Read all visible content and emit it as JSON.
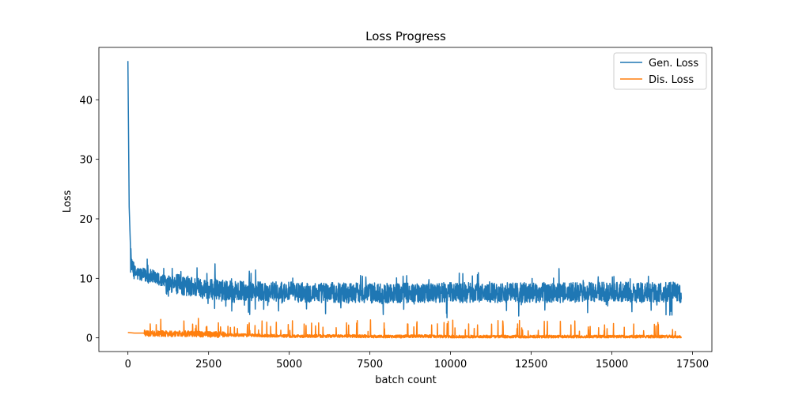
{
  "chart_data": {
    "type": "line",
    "title": "Loss Progress",
    "xlabel": "batch count",
    "ylabel": "Loss",
    "xlim": [
      -900,
      18100
    ],
    "ylim": [
      -2.3,
      48.8
    ],
    "xticks": [
      0,
      2500,
      5000,
      7500,
      10000,
      12500,
      15000,
      17500
    ],
    "yticks": [
      0,
      10,
      20,
      30,
      40
    ],
    "xtick_labels": [
      "0",
      "2500",
      "5000",
      "7500",
      "10000",
      "12500",
      "15000",
      "17500"
    ],
    "ytick_labels": [
      "0",
      "10",
      "20",
      "30",
      "40"
    ],
    "grid": false,
    "legend_position": "top-right",
    "series": [
      {
        "name": "Gen. Loss",
        "color": "#1f77b4",
        "x": [
          0,
          40,
          80,
          120,
          200,
          300,
          500,
          800,
          1000,
          1500,
          2000,
          2500,
          3000,
          4000,
          5000,
          6000,
          7000,
          8000,
          9000,
          10000,
          11000,
          12000,
          13000,
          14000,
          15000,
          16000,
          17000,
          17150
        ],
        "values": [
          46.5,
          22,
          15,
          12,
          11,
          10.8,
          10.5,
          10.2,
          9.6,
          9.0,
          8.6,
          8.2,
          8.0,
          7.8,
          7.7,
          7.6,
          7.6,
          7.5,
          7.6,
          7.6,
          7.6,
          7.6,
          7.6,
          7.6,
          7.7,
          7.6,
          7.7,
          7.5
        ]
      },
      {
        "name": "Dis. Loss",
        "color": "#ff7f0e",
        "x": [
          0,
          200,
          500,
          1000,
          1500,
          2000,
          2500,
          3000,
          4000,
          5000,
          6000,
          7000,
          8000,
          9000,
          10000,
          11000,
          12000,
          13000,
          14000,
          15000,
          16000,
          17000,
          17150
        ],
        "values": [
          0.9,
          0.8,
          0.8,
          0.7,
          0.7,
          0.7,
          0.6,
          0.5,
          0.4,
          0.3,
          0.3,
          0.3,
          0.2,
          0.3,
          0.2,
          0.2,
          0.2,
          0.2,
          0.2,
          0.2,
          0.2,
          0.2,
          0.1
        ]
      }
    ]
  }
}
